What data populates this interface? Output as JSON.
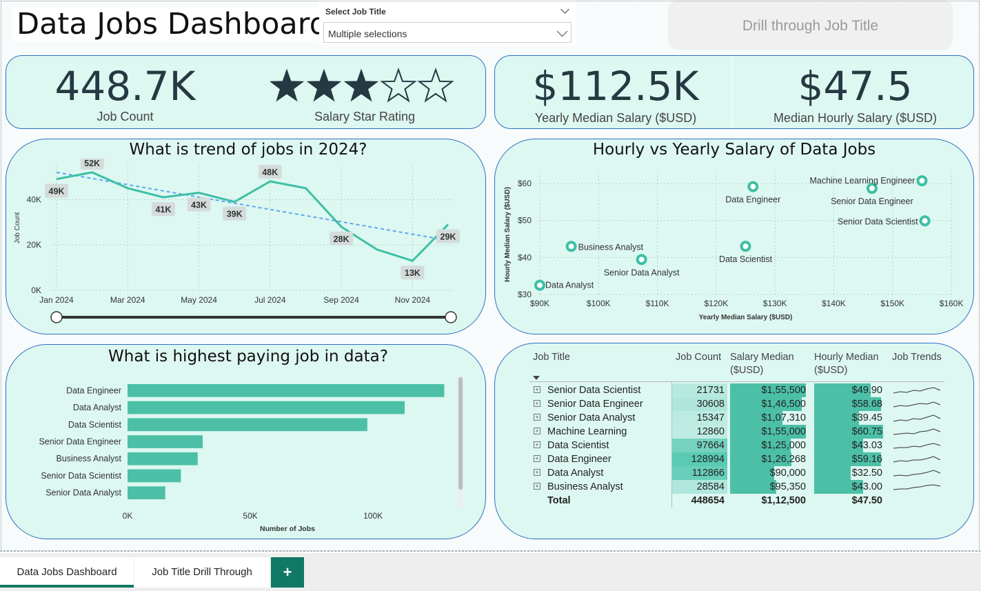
{
  "header": {
    "title": "Data Jobs Dashboard",
    "slicer_label": "Select Job Title",
    "slicer_value": "Multiple selections",
    "drill_button": "Drill through Job Title"
  },
  "kpis": {
    "job_count": {
      "value": "448.7K",
      "label": "Job Count"
    },
    "star_rating": {
      "label": "Salary Star Rating",
      "stars_filled": 3,
      "stars_total": 5
    },
    "yearly_salary": {
      "value": "$112.5K",
      "label": "Yearly Median Salary ($USD)"
    },
    "hourly_salary": {
      "value": "$47.5",
      "label": "Median Hourly Salary ($USD)"
    }
  },
  "chart_data": [
    {
      "type": "line",
      "title": "What is trend of jobs in 2024?",
      "ylabel": "Job Count",
      "xlabel": "",
      "x": [
        "Jan 2024",
        "Feb 2024",
        "Mar 2024",
        "Apr 2024",
        "May 2024",
        "Jun 2024",
        "Jul 2024",
        "Aug 2024",
        "Sep 2024",
        "Oct 2024",
        "Nov 2024",
        "Dec 2024"
      ],
      "x_tick_labels": [
        "Jan 2024",
        "Mar 2024",
        "May 2024",
        "Jul 2024",
        "Sep 2024",
        "Nov 2024"
      ],
      "values": [
        49000,
        52000,
        45000,
        41000,
        43000,
        39000,
        48000,
        45000,
        28000,
        18000,
        13000,
        29000
      ],
      "data_labels": [
        "49K",
        "52K",
        "",
        "41K",
        "43K",
        "39K",
        "48K",
        "",
        "28K",
        "",
        "13K",
        "29K"
      ],
      "y_ticks": [
        "0K",
        "20K",
        "40K"
      ],
      "ylim": [
        0,
        55000
      ],
      "trendline": [
        52000,
        22000
      ],
      "color": "#3dbfa5",
      "trend_color": "#5aa7f0"
    },
    {
      "type": "scatter",
      "title": "Hourly vs Yearly Salary of Data Jobs",
      "xlabel": "Yearly Median Salary ($USD)",
      "ylabel": "Hourly Median Salary ($USD)",
      "x_ticks": [
        "$90K",
        "$100K",
        "$110K",
        "$120K",
        "$130K",
        "$140K",
        "$150K",
        "$160K"
      ],
      "y_ticks": [
        "$30",
        "$40",
        "$50",
        "$60"
      ],
      "xlim": [
        90000,
        160000
      ],
      "ylim": [
        30,
        63
      ],
      "points": [
        {
          "label": "Data Analyst",
          "x": 90000,
          "y": 32.5
        },
        {
          "label": "Business Analyst",
          "x": 95350,
          "y": 43.0
        },
        {
          "label": "Senior Data Analyst",
          "x": 107310,
          "y": 39.45
        },
        {
          "label": "Data Scientist",
          "x": 125000,
          "y": 43.03
        },
        {
          "label": "Data Engineer",
          "x": 126268,
          "y": 59.16
        },
        {
          "label": "Senior Data Engineer",
          "x": 146500,
          "y": 58.68
        },
        {
          "label": "Machine Learning Engineer",
          "x": 155000,
          "y": 60.75
        },
        {
          "label": "Senior Data Scientist",
          "x": 155500,
          "y": 49.9
        }
      ],
      "color": "#3dbfa5"
    },
    {
      "type": "bar",
      "orientation": "horizontal",
      "title": "What is highest paying job in data?",
      "xlabel": "Number of Jobs",
      "categories": [
        "Data Engineer",
        "Data Analyst",
        "Data Scientist",
        "Senior Data Engineer",
        "Business Analyst",
        "Senior Data Scientist",
        "Senior Data Analyst"
      ],
      "values": [
        128994,
        112866,
        97664,
        30608,
        28584,
        21731,
        15347
      ],
      "x_ticks": [
        "0K",
        "50K",
        "100K"
      ],
      "xlim": [
        0,
        130000
      ],
      "color": "#4cc0a6"
    }
  ],
  "matrix": {
    "headers": {
      "job_title": "Job Title",
      "job_count": "Job Count",
      "salary_median": "Salary Median ($USD)",
      "hourly_median": "Hourly Median ($USD)",
      "job_trends": "Job Trends"
    },
    "rows": [
      {
        "title": "Senior Data Scientist",
        "count": "21731",
        "salary": "$1,55,500",
        "hourly": "$49.90",
        "count_n": 21731,
        "salary_n": 155500,
        "hourly_n": 49.9
      },
      {
        "title": "Senior Data Engineer",
        "count": "30608",
        "salary": "$1,46,500",
        "hourly": "$58.68",
        "count_n": 30608,
        "salary_n": 146500,
        "hourly_n": 58.68
      },
      {
        "title": "Senior Data Analyst",
        "count": "15347",
        "salary": "$1,07,310",
        "hourly": "$39.45",
        "count_n": 15347,
        "salary_n": 107310,
        "hourly_n": 39.45
      },
      {
        "title": "Machine Learning",
        "count": "12860",
        "salary": "$1,55,000",
        "hourly": "$60.75",
        "count_n": 12860,
        "salary_n": 155000,
        "hourly_n": 60.75
      },
      {
        "title": "Data Scientist",
        "count": "97664",
        "salary": "$1,25,000",
        "hourly": "$43.03",
        "count_n": 97664,
        "salary_n": 125000,
        "hourly_n": 43.03
      },
      {
        "title": "Data Engineer",
        "count": "128994",
        "salary": "$1,26,268",
        "hourly": "$59.16",
        "count_n": 128994,
        "salary_n": 126268,
        "hourly_n": 59.16
      },
      {
        "title": "Data Analyst",
        "count": "112866",
        "salary": "$90,000",
        "hourly": "$32.50",
        "count_n": 112866,
        "salary_n": 90000,
        "hourly_n": 32.5
      },
      {
        "title": "Business Analyst",
        "count": "28584",
        "salary": "$95,350",
        "hourly": "$43.00",
        "count_n": 28584,
        "salary_n": 95350,
        "hourly_n": 43.0
      }
    ],
    "total": {
      "title": "Total",
      "count": "448654",
      "salary": "$1,12,500",
      "hourly": "$47.50"
    }
  },
  "tabs": [
    {
      "label": "Data Jobs Dashboard",
      "active": true
    },
    {
      "label": "Job Title Drill Through",
      "active": false
    }
  ],
  "add_tab_label": "+",
  "colors": {
    "teal": "#3dbfa5",
    "panel": "#ddf7f1",
    "border": "#2e6fc0",
    "tab_accent": "#117865"
  }
}
